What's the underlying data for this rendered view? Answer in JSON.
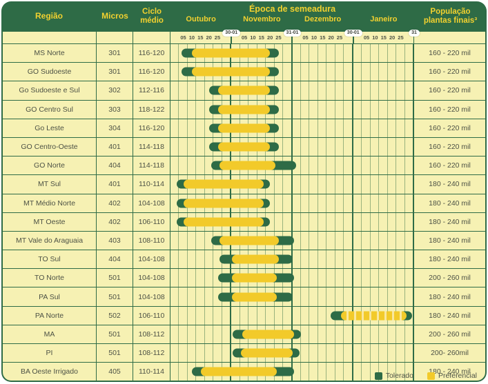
{
  "header": {
    "col_regiao": "Região",
    "col_micros": "Micros",
    "col_ciclo": "Ciclo médio",
    "chart_title": "Época de semeadura",
    "col_populacao": "População plantas finais³"
  },
  "axis": {
    "months": [
      "Outubro",
      "Novembro",
      "Dezembro",
      "Janeiro"
    ],
    "day_ticks": [
      "05",
      "10",
      "15",
      "20",
      "25"
    ],
    "boundary_badges": [
      "30-01",
      "31-01",
      "30-01",
      "31"
    ]
  },
  "legend": {
    "tolerado": "Tolerado",
    "preferencial": "Preferencial"
  },
  "colors": {
    "dark_green": "#2e6b46",
    "bar_yellow": "#f2ca2a",
    "row_background": "#f6f1b3",
    "badge_background": "#ffffff",
    "body_text": "#4c5145",
    "header_text": "#f2d12f"
  },
  "chart_data": {
    "type": "gantt",
    "title": "Época de semeadura",
    "x_axis": {
      "months": [
        "Outubro",
        "Novembro",
        "Dezembro",
        "Janeiro"
      ],
      "day_ticks_per_month": [
        "05",
        "10",
        "15",
        "20",
        "25"
      ],
      "month_boundary_labels": [
        "30-01",
        "31-01",
        "30-01",
        "31"
      ],
      "unit_note": "spans given in day-units u = month_index*35 + day_of_month (Oct=0, Nov=1, Dec=2, Jan=3); x = (u+2.5)/140 of chart width"
    },
    "series_legend": [
      "Tolerado",
      "Preferencial"
    ],
    "rows": [
      {
        "region": "MS Norte",
        "micros": "301",
        "ciclo": "116-120",
        "populacao": "160 - 220 mil",
        "tolerado": [
          4,
          60
        ],
        "preferencial": [
          10,
          55
        ],
        "dashed": false
      },
      {
        "region": "GO Sudoeste",
        "micros": "301",
        "ciclo": "116-120",
        "populacao": "160 - 220 mil",
        "tolerado": [
          4,
          60
        ],
        "preferencial": [
          10,
          55
        ],
        "dashed": false
      },
      {
        "region": "Go Sudoeste e Sul",
        "micros": "302",
        "ciclo": "112-116",
        "populacao": "160 - 220 mil",
        "tolerado": [
          20,
          60
        ],
        "preferencial": [
          25,
          55
        ],
        "dashed": false
      },
      {
        "region": "GO Centro Sul",
        "micros": "303",
        "ciclo": "118-122",
        "populacao": "160 - 220 mil",
        "tolerado": [
          20,
          60
        ],
        "preferencial": [
          25,
          55
        ],
        "dashed": false
      },
      {
        "region": "Go Leste",
        "micros": "304",
        "ciclo": "116-120",
        "populacao": "160 - 220 mil",
        "tolerado": [
          20,
          60
        ],
        "preferencial": [
          25,
          55
        ],
        "dashed": false
      },
      {
        "region": "GO Centro-Oeste",
        "micros": "401",
        "ciclo": "114-118",
        "populacao": "160 - 220 mil",
        "tolerado": [
          20,
          60
        ],
        "preferencial": [
          25,
          55
        ],
        "dashed": false
      },
      {
        "region": "GO Norte",
        "micros": "404",
        "ciclo": "114-118",
        "populacao": "160 - 220 mil",
        "tolerado": [
          21,
          70
        ],
        "preferencial": [
          26,
          58
        ],
        "dashed": false
      },
      {
        "region": "MT Sul",
        "micros": "401",
        "ciclo": "110-114",
        "populacao": "180 - 240 mil",
        "tolerado": [
          1,
          55
        ],
        "preferencial": [
          5,
          51.5
        ],
        "dashed": false
      },
      {
        "region": "MT Médio Norte",
        "micros": "402",
        "ciclo": "104-108",
        "populacao": "180 - 240 mil",
        "tolerado": [
          1,
          55
        ],
        "preferencial": [
          5,
          51.5
        ],
        "dashed": false
      },
      {
        "region": "MT Oeste",
        "micros": "402",
        "ciclo": "106-110",
        "populacao": "180 - 240 mil",
        "tolerado": [
          1,
          55
        ],
        "preferencial": [
          5,
          51.5
        ],
        "dashed": false
      },
      {
        "region": "MT Vale do Araguaia",
        "micros": "403",
        "ciclo": "108-110",
        "populacao": "180 - 240 mil",
        "tolerado": [
          21,
          69
        ],
        "preferencial": [
          26,
          60
        ],
        "dashed": false
      },
      {
        "region": "TO Sul",
        "micros": "404",
        "ciclo": "104-108",
        "populacao": "180 - 240 mil",
        "tolerado": [
          26,
          68
        ],
        "preferencial": [
          33,
          60
        ],
        "dashed": false
      },
      {
        "region": "TO Norte",
        "micros": "501",
        "ciclo": "104-108",
        "populacao": "200 - 260 mil",
        "tolerado": [
          25,
          69
        ],
        "preferencial": [
          33,
          59
        ],
        "dashed": false
      },
      {
        "region": "PA Sul",
        "micros": "501",
        "ciclo": "104-108",
        "populacao": "180 - 240 mil",
        "tolerado": [
          25,
          68
        ],
        "preferencial": [
          33,
          59
        ],
        "dashed": false
      },
      {
        "region": "PA Norte",
        "micros": "502",
        "ciclo": "106-110",
        "populacao": "180 - 240 mil",
        "tolerado": [
          90,
          137
        ],
        "preferencial": [
          96,
          134
        ],
        "dashed": true
      },
      {
        "region": "MA",
        "micros": "501",
        "ciclo": "108-112",
        "populacao": "200 - 260 mil",
        "tolerado": [
          33.5,
          73
        ],
        "preferencial": [
          39,
          69
        ],
        "dashed": false
      },
      {
        "region": "PI",
        "micros": "501",
        "ciclo": "108-112",
        "populacao": "200- 260mil",
        "tolerado": [
          33.5,
          72
        ],
        "preferencial": [
          38,
          68
        ],
        "dashed": false
      },
      {
        "region": "BA Oeste Irrigado",
        "micros": "405",
        "ciclo": "110-114",
        "populacao": "180 - 240 mil",
        "tolerado": [
          10,
          69
        ],
        "preferencial": [
          15,
          59
        ],
        "dashed": false
      }
    ]
  }
}
